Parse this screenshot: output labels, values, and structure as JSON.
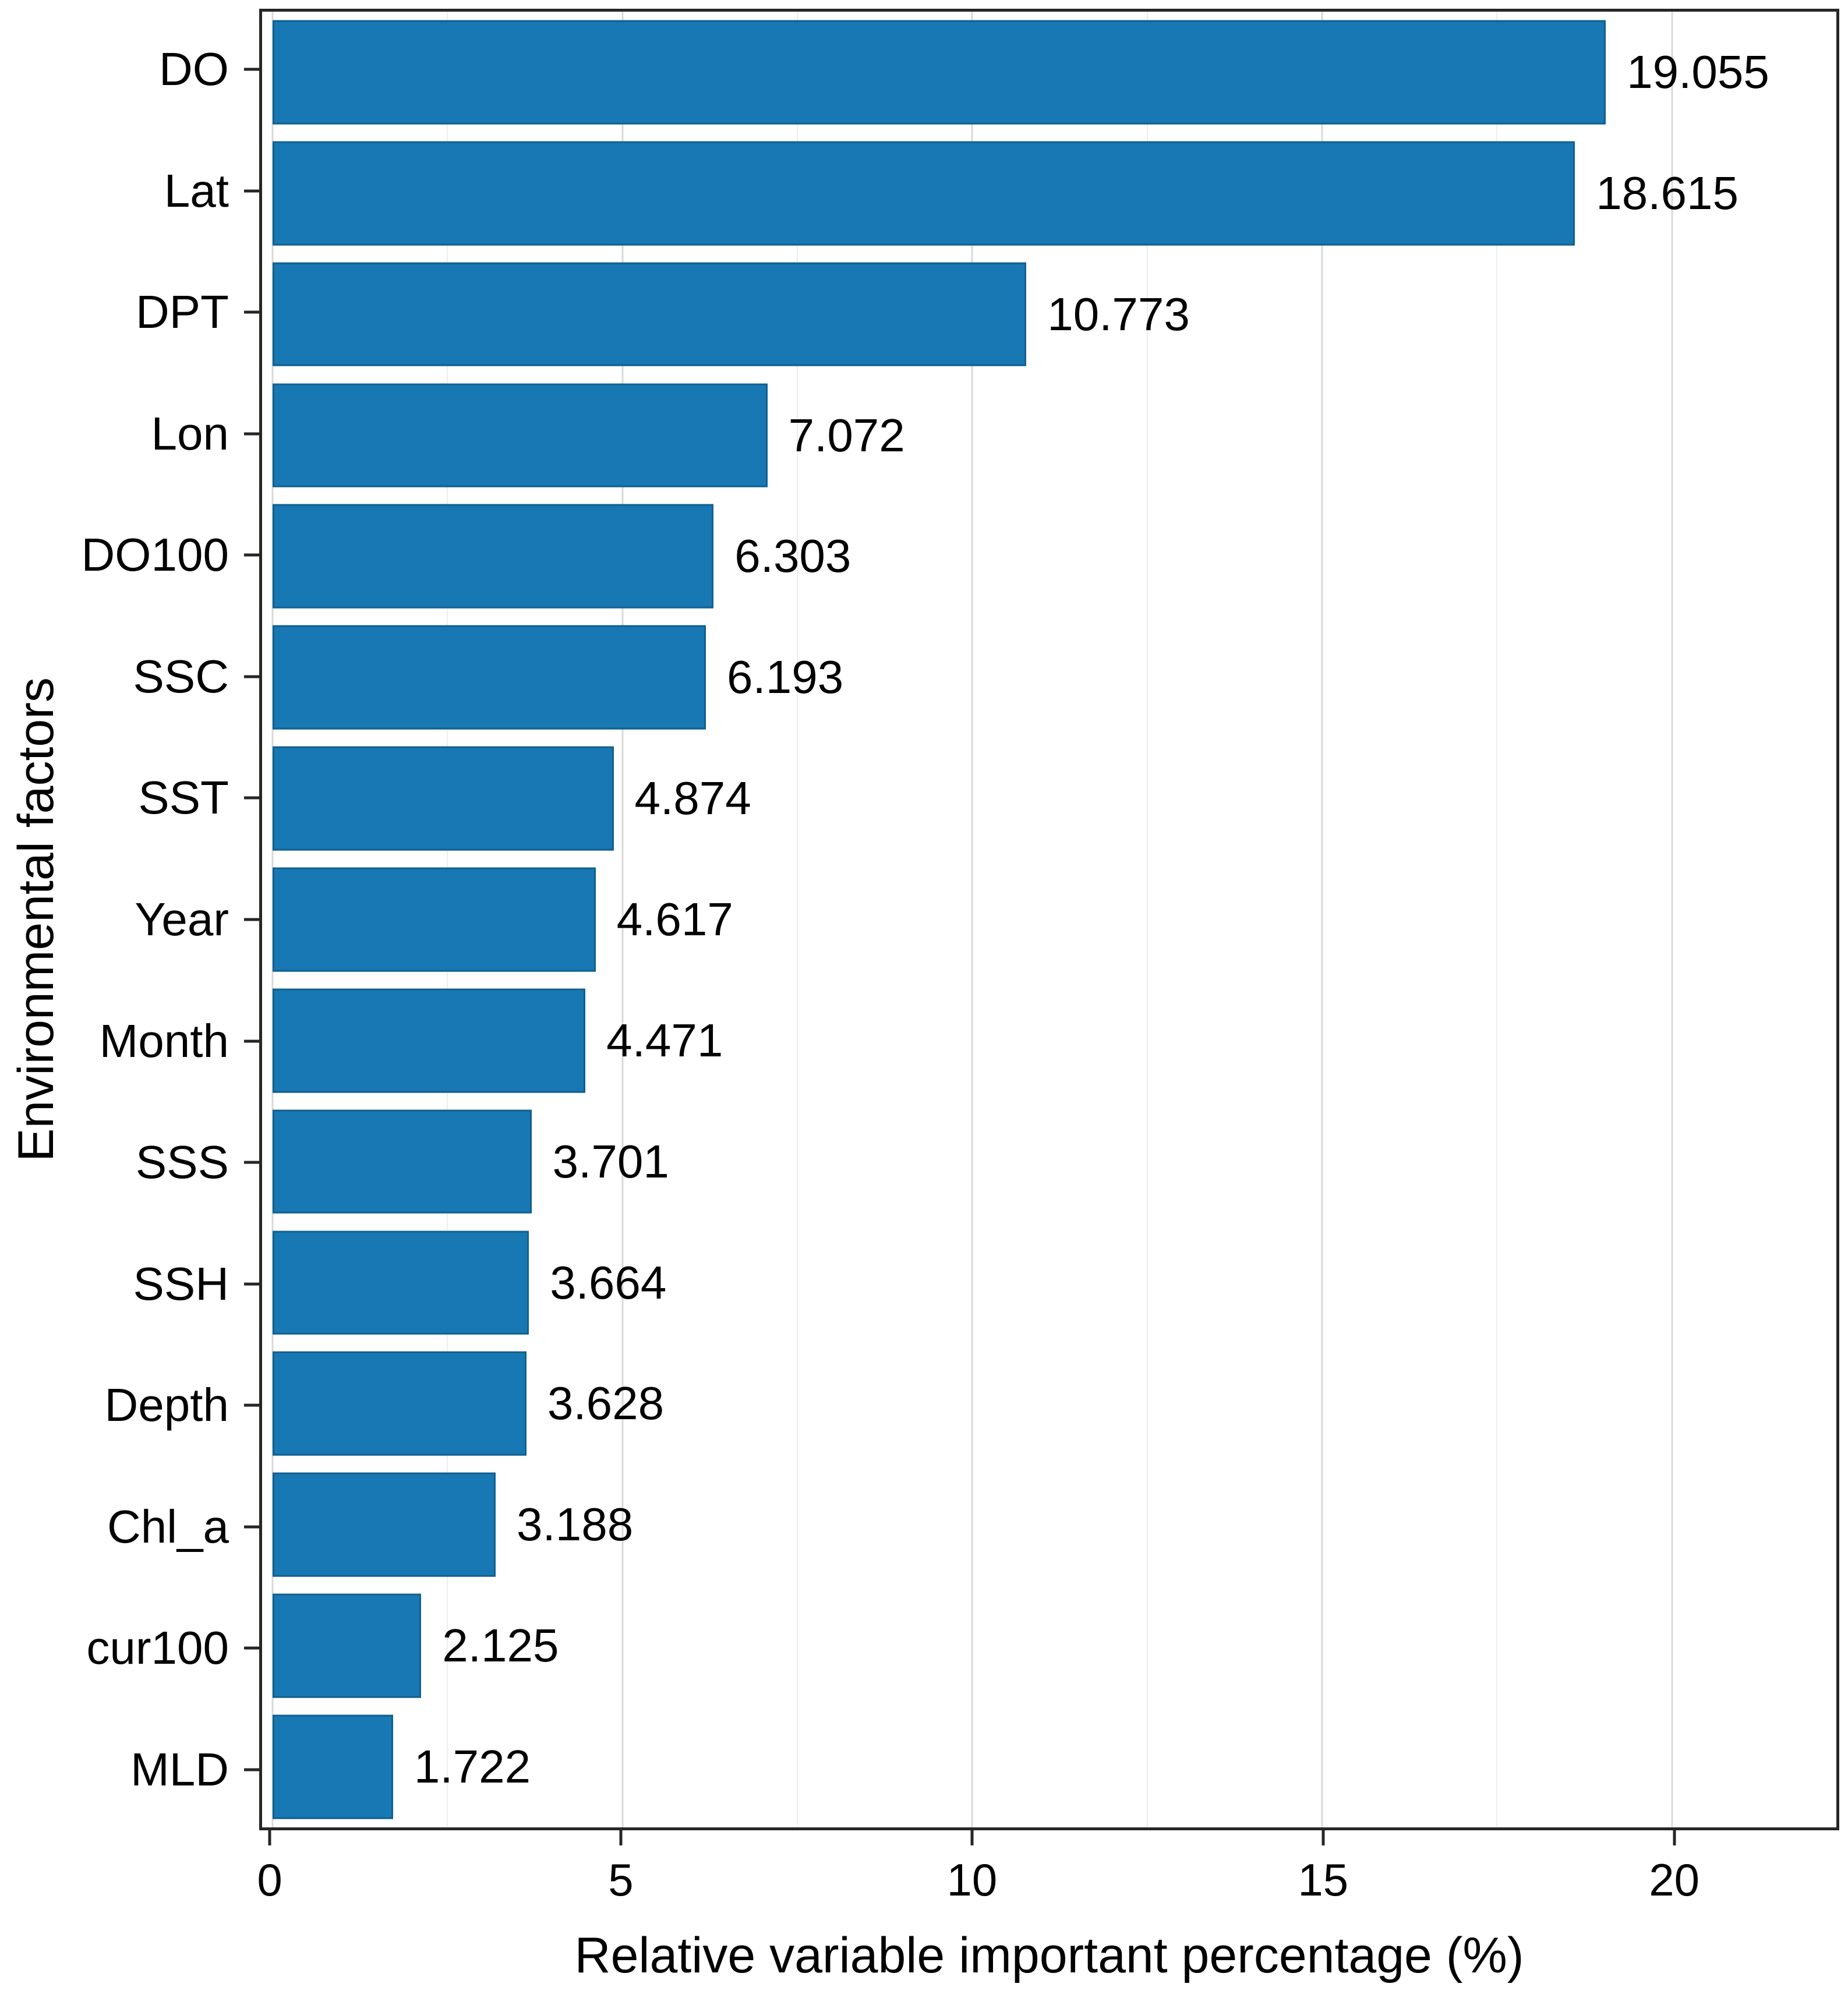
{
  "chart_data": {
    "type": "bar",
    "orientation": "horizontal",
    "title": "",
    "xlabel": "Relative variable important percentage (%)",
    "ylabel": "Environmental factors",
    "categories": [
      "DO",
      "Lat",
      "DPT",
      "Lon",
      "DO100",
      "SSC",
      "SST",
      "Year",
      "Month",
      "SSS",
      "SSH",
      "Depth",
      "Chl_a",
      "cur100",
      "MLD"
    ],
    "values": [
      19.055,
      18.615,
      10.773,
      7.072,
      6.303,
      6.193,
      4.874,
      4.617,
      4.471,
      3.701,
      3.664,
      3.628,
      3.188,
      2.125,
      1.722
    ],
    "value_labels": [
      "19.055",
      "18.615",
      "10.773",
      "7.072",
      "6.303",
      "6.193",
      "4.874",
      "4.617",
      "4.471",
      "3.701",
      "3.664",
      "3.628",
      "3.188",
      "2.125",
      "1.722"
    ],
    "x_ticks": [
      0,
      5,
      10,
      15,
      20
    ],
    "x_minor_ticks": [
      2.5,
      7.5,
      12.5,
      17.5
    ],
    "xlim": [
      -0.15,
      22.35
    ],
    "bar_width_fraction": 0.86,
    "grid": true,
    "legend": false,
    "colors": {
      "bar_fill": "#1878b4",
      "bar_border": "#10618f",
      "grid_major": "#d9d9d9",
      "grid_minor": "#ededed",
      "axis_line": "#262626",
      "text": "#000000",
      "background": "#ffffff"
    }
  }
}
